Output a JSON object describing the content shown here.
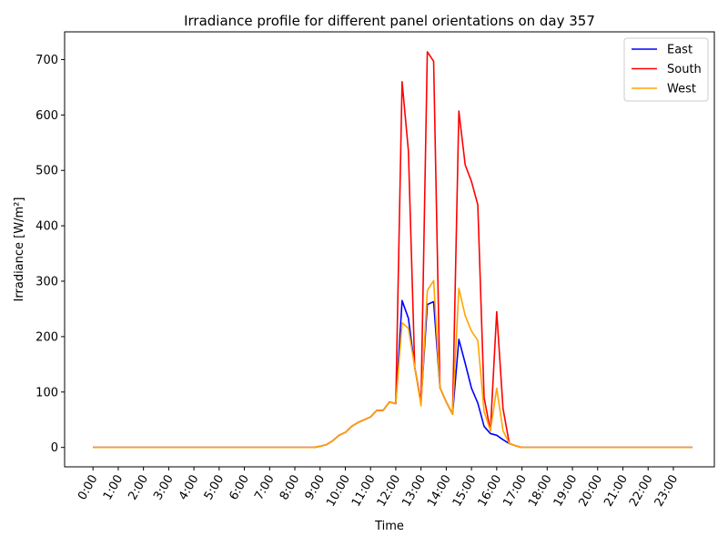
{
  "chart_data": {
    "type": "line",
    "title": "Irradiance profile for different panel orientations on day 357",
    "xlabel": "Time",
    "ylabel": "Irradiance [W/m²]",
    "x_tick_labels": [
      "0:00",
      "1:00",
      "2:00",
      "3:00",
      "4:00",
      "5:00",
      "6:00",
      "7:00",
      "8:00",
      "9:00",
      "10:00",
      "11:00",
      "12:00",
      "13:00",
      "14:00",
      "15:00",
      "16:00",
      "17:00",
      "18:00",
      "19:00",
      "20:00",
      "21:00",
      "22:00",
      "23:00"
    ],
    "y_ticks": [
      0,
      100,
      200,
      300,
      400,
      500,
      600,
      700
    ],
    "xlim": [
      -1.125,
      24.625
    ],
    "ylim": [
      -35,
      750
    ],
    "grid": false,
    "legend_position": "top-right",
    "x": [
      0,
      0.25,
      0.5,
      0.75,
      1,
      1.25,
      1.5,
      1.75,
      2,
      2.25,
      2.5,
      2.75,
      3,
      3.25,
      3.5,
      3.75,
      4,
      4.25,
      4.5,
      4.75,
      5,
      5.25,
      5.5,
      5.75,
      6,
      6.25,
      6.5,
      6.75,
      7,
      7.25,
      7.5,
      7.75,
      8,
      8.25,
      8.5,
      8.75,
      9,
      9.25,
      9.5,
      9.75,
      10,
      10.25,
      10.5,
      10.75,
      11,
      11.25,
      11.5,
      11.75,
      12,
      12.25,
      12.5,
      12.75,
      13,
      13.25,
      13.5,
      13.75,
      14,
      14.25,
      14.5,
      14.75,
      15,
      15.25,
      15.5,
      15.75,
      16,
      16.25,
      16.5,
      16.75,
      17,
      17.25,
      17.5,
      17.75,
      18,
      18.25,
      18.5,
      18.75,
      19,
      19.25,
      19.5,
      19.75,
      20,
      20.25,
      20.5,
      20.75,
      21,
      21.25,
      21.5,
      21.75,
      22,
      22.25,
      22.5,
      22.75,
      23,
      23.25,
      23.5,
      23.75
    ],
    "series": [
      {
        "name": "East",
        "color": "#0000ff",
        "values": [
          0,
          0,
          0,
          0,
          0,
          0,
          0,
          0,
          0,
          0,
          0,
          0,
          0,
          0,
          0,
          0,
          0,
          0,
          0,
          0,
          0,
          0,
          0,
          0,
          0,
          0,
          0,
          0,
          0,
          0,
          0,
          0,
          0,
          0,
          0,
          0,
          2,
          5,
          12,
          22,
          27,
          38,
          45,
          50,
          55,
          67,
          67,
          82,
          79,
          265,
          233,
          145,
          80,
          258,
          263,
          108,
          82,
          60,
          195,
          152,
          107,
          80,
          38,
          25,
          22,
          14,
          7,
          3,
          0,
          0,
          0,
          0,
          0,
          0,
          0,
          0,
          0,
          0,
          0,
          0,
          0,
          0,
          0,
          0,
          0,
          0,
          0,
          0,
          0,
          0,
          0,
          0,
          0,
          0,
          0,
          0
        ]
      },
      {
        "name": "South",
        "color": "#ff0000",
        "values": [
          0,
          0,
          0,
          0,
          0,
          0,
          0,
          0,
          0,
          0,
          0,
          0,
          0,
          0,
          0,
          0,
          0,
          0,
          0,
          0,
          0,
          0,
          0,
          0,
          0,
          0,
          0,
          0,
          0,
          0,
          0,
          0,
          0,
          0,
          0,
          0,
          2,
          5,
          12,
          22,
          27,
          38,
          45,
          50,
          55,
          67,
          67,
          82,
          79,
          660,
          535,
          145,
          80,
          714,
          697,
          108,
          82,
          60,
          607,
          510,
          480,
          438,
          90,
          30,
          245,
          70,
          7,
          3,
          0,
          0,
          0,
          0,
          0,
          0,
          0,
          0,
          0,
          0,
          0,
          0,
          0,
          0,
          0,
          0,
          0,
          0,
          0,
          0,
          0,
          0,
          0,
          0,
          0,
          0,
          0,
          0
        ]
      },
      {
        "name": "West",
        "color": "#ffa500",
        "values": [
          0,
          0,
          0,
          0,
          0,
          0,
          0,
          0,
          0,
          0,
          0,
          0,
          0,
          0,
          0,
          0,
          0,
          0,
          0,
          0,
          0,
          0,
          0,
          0,
          0,
          0,
          0,
          0,
          0,
          0,
          0,
          0,
          0,
          0,
          0,
          0,
          2,
          5,
          12,
          22,
          27,
          38,
          45,
          50,
          55,
          67,
          67,
          82,
          79,
          225,
          215,
          145,
          75,
          283,
          301,
          108,
          82,
          60,
          287,
          238,
          210,
          193,
          65,
          30,
          107,
          30,
          7,
          3,
          0,
          0,
          0,
          0,
          0,
          0,
          0,
          0,
          0,
          0,
          0,
          0,
          0,
          0,
          0,
          0,
          0,
          0,
          0,
          0,
          0,
          0,
          0,
          0,
          0,
          0,
          0,
          0
        ]
      }
    ]
  }
}
